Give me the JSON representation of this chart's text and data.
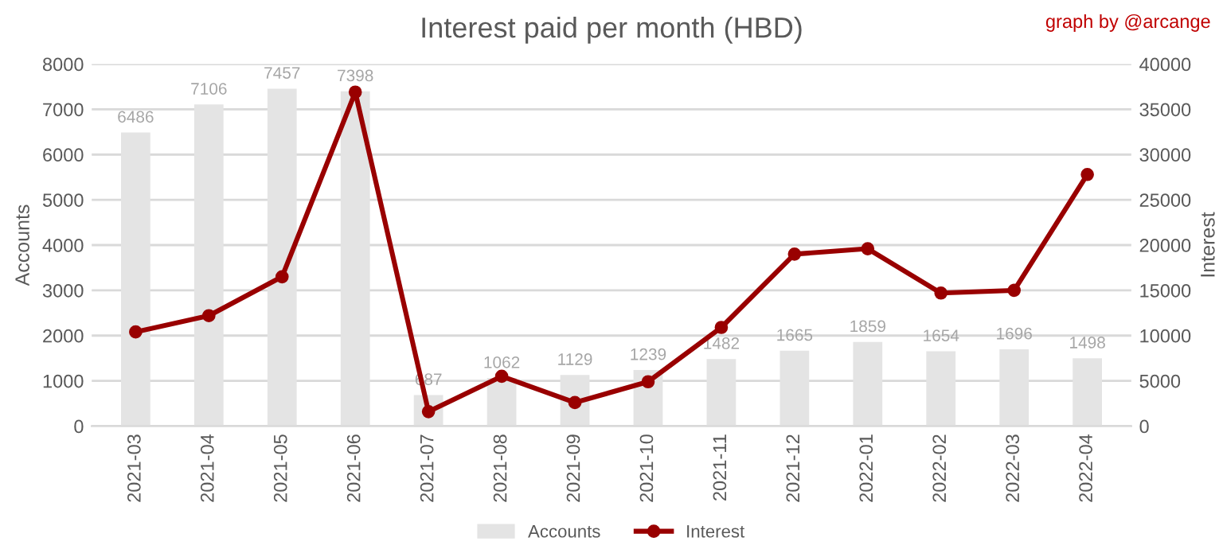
{
  "chart_data": {
    "type": "bar",
    "title": "Interest paid per month (HBD)",
    "categories": [
      "2021-03",
      "2021-04",
      "2021-05",
      "2021-06",
      "2021-07",
      "2021-08",
      "2021-09",
      "2021-10",
      "2021-11",
      "2021-12",
      "2022-01",
      "2022-02",
      "2022-03",
      "2022-04"
    ],
    "series": [
      {
        "name": "Accounts",
        "color": "#e4e4e4",
        "data_labels": true,
        "values": [
          6486,
          7106,
          7457,
          7398,
          687,
          1062,
          1129,
          1239,
          1482,
          1665,
          1859,
          1654,
          1696,
          1498
        ]
      },
      {
        "name": "Interest",
        "type": "line",
        "axis": "y2",
        "color": "#990000",
        "marker": "circle",
        "values": [
          10400,
          12200,
          16500,
          36900,
          1600,
          5500,
          2600,
          4900,
          10900,
          19000,
          19600,
          14700,
          15000,
          27800
        ]
      }
    ],
    "ylabel": "Accounts",
    "y2label": "Interest",
    "ylim": [
      0,
      8000
    ],
    "yticks": [
      0,
      1000,
      2000,
      3000,
      4000,
      5000,
      6000,
      7000,
      8000
    ],
    "y2lim": [
      0,
      40000
    ],
    "y2ticks": [
      0,
      5000,
      10000,
      15000,
      20000,
      25000,
      30000,
      35000,
      40000
    ],
    "grid": "y",
    "legend": "bottom",
    "annotations": [
      "graph by @arcange"
    ]
  }
}
